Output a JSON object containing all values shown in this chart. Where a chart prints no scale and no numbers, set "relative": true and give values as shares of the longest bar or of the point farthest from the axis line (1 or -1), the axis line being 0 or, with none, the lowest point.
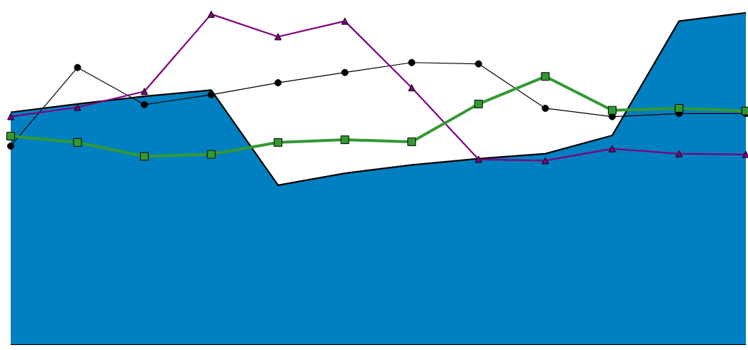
{
  "chart_data": {
    "type": "line",
    "relative": true,
    "grid": false,
    "categories": [
      null,
      null,
      null,
      null,
      null,
      null,
      null,
      null,
      null,
      null,
      null,
      null
    ],
    "series": [
      {
        "type": "area",
        "color": "#0080c0",
        "marker": "none",
        "values": [
          0.7,
          0.725,
          0.748,
          0.767,
          0.48,
          0.516,
          0.541,
          0.56,
          0.575,
          0.63,
          0.975,
          1.0
        ]
      },
      {
        "color": "#000000",
        "marker": "circle",
        "values": [
          0.598,
          0.835,
          0.723,
          0.753,
          0.789,
          0.82,
          0.85,
          0.846,
          0.712,
          0.687,
          0.696,
          0.696
        ]
      },
      {
        "color": "#800080",
        "marker": "triangle",
        "values": [
          0.687,
          0.715,
          0.763,
          0.996,
          0.928,
          0.975,
          0.774,
          0.558,
          0.554,
          0.59,
          0.575,
          0.573
        ]
      },
      {
        "color": "#339933",
        "marker": "square",
        "values": [
          0.628,
          0.609,
          0.567,
          0.573,
          0.609,
          0.617,
          0.611,
          0.725,
          0.808,
          0.706,
          0.712,
          0.704
        ]
      }
    ]
  }
}
